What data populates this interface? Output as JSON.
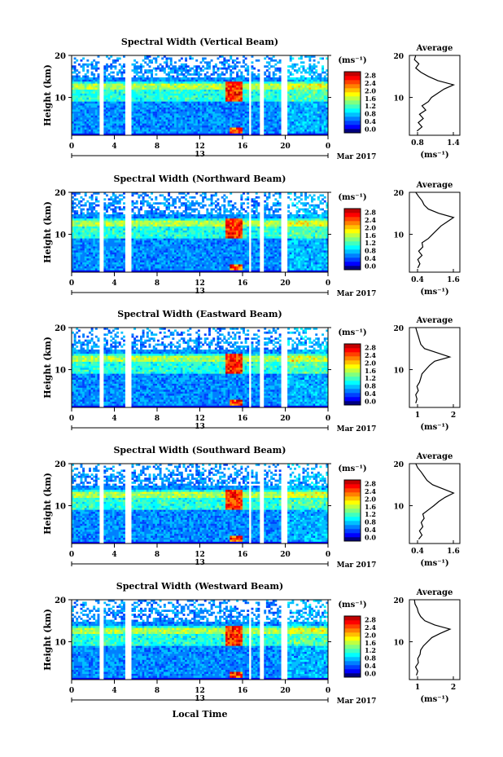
{
  "figure": {
    "xaxis_label": "Local Time",
    "date_label": "Mar 2017",
    "day_label": "13",
    "unit_label": "(ms⁻¹)",
    "avg_unit_label": "(ms⁻¹)",
    "height_label": "Height (km)",
    "avg_title": "Average",
    "colorbar_ticks": [
      "2.8",
      "2.4",
      "2.0",
      "1.6",
      "1.2",
      "0.8",
      "0.4",
      "0.0"
    ],
    "colors": {
      "jet": [
        "#00007f",
        "#0000ff",
        "#0040ff",
        "#0080ff",
        "#00c0ff",
        "#00ffff",
        "#40ffc0",
        "#80ff80",
        "#c0ff40",
        "#ffff00",
        "#ffc000",
        "#ff8000",
        "#ff4000",
        "#ff0000",
        "#c00000"
      ],
      "bg": "#ffffff",
      "line": "#000000"
    }
  },
  "chart_data": [
    {
      "type": "heatmap",
      "title": "Spectral Width (Vertical Beam)",
      "xlim": [
        0,
        24
      ],
      "xticks": [
        "0",
        "4",
        "8",
        "12",
        "16",
        "20",
        "0"
      ],
      "ylim": [
        1,
        20
      ],
      "yticks": [
        "20",
        "10"
      ],
      "colorbar_range": [
        0,
        3.0
      ],
      "features": {
        "hot_patch_hours": [
          14.5,
          16
        ],
        "hot_patch_km": [
          9,
          14
        ],
        "gap_hours": [
          [
            2.1,
            2.3
          ],
          [
            2.6,
            3.0
          ],
          [
            5.1,
            5.5
          ],
          [
            16.6,
            16.8
          ],
          [
            17.6,
            17.9
          ],
          [
            19.7,
            20.2
          ]
        ]
      },
      "average": {
        "xlim": [
          0.6,
          1.4
        ],
        "xticks": [
          "0.8",
          "1.4"
        ],
        "yticks": [
          "20",
          "10"
        ],
        "profile_km": [
          2,
          3,
          4,
          5,
          6,
          7,
          8,
          9,
          10,
          11,
          12,
          13,
          14,
          15,
          16,
          17,
          18,
          19,
          20
        ],
        "profile_values": [
          0.72,
          0.8,
          0.74,
          0.82,
          0.76,
          0.86,
          0.8,
          0.9,
          0.95,
          1.05,
          1.15,
          1.3,
          1.05,
          0.9,
          0.78,
          0.7,
          0.75,
          0.68,
          0.7
        ]
      }
    },
    {
      "type": "heatmap",
      "title": "Spectral Width (Northward Beam)",
      "xlim": [
        0,
        24
      ],
      "xticks": [
        "0",
        "4",
        "8",
        "12",
        "16",
        "20",
        "0"
      ],
      "ylim": [
        1,
        20
      ],
      "yticks": [
        "20",
        "10"
      ],
      "colorbar_range": [
        0,
        3.0
      ],
      "features": {
        "hot_patch_hours": [
          14.5,
          16
        ],
        "hot_patch_km": [
          9,
          14
        ],
        "gap_hours": [
          [
            2.1,
            2.3
          ],
          [
            2.6,
            3.0
          ],
          [
            5.1,
            5.5
          ],
          [
            16.6,
            16.8
          ],
          [
            17.6,
            17.9
          ],
          [
            19.7,
            20.2
          ]
        ]
      },
      "average": {
        "xlim": [
          0.4,
          1.6
        ],
        "xticks": [
          "0.4",
          "1.6"
        ],
        "yticks": [
          "20",
          "10"
        ],
        "profile_km": [
          2,
          3,
          4,
          5,
          6,
          7,
          8,
          9,
          10,
          11,
          12,
          13,
          14,
          15,
          16,
          17,
          18,
          19,
          20
        ],
        "profile_values": [
          0.6,
          0.65,
          0.6,
          0.7,
          0.62,
          0.72,
          0.7,
          0.85,
          0.95,
          1.05,
          1.15,
          1.3,
          1.45,
          1.1,
          0.85,
          0.75,
          0.7,
          0.62,
          0.55
        ]
      }
    },
    {
      "type": "heatmap",
      "title": "Spectral Width (Eastward Beam)",
      "xlim": [
        0,
        24
      ],
      "xticks": [
        "0",
        "4",
        "8",
        "12",
        "16",
        "20",
        "0"
      ],
      "ylim": [
        1,
        20
      ],
      "yticks": [
        "20",
        "10"
      ],
      "colorbar_range": [
        0,
        3.0
      ],
      "features": {
        "hot_patch_hours": [
          14.5,
          16
        ],
        "hot_patch_km": [
          9,
          14
        ],
        "gap_hours": [
          [
            2.1,
            2.3
          ],
          [
            2.6,
            3.0
          ],
          [
            5.1,
            5.5
          ],
          [
            16.6,
            16.8
          ],
          [
            17.6,
            17.9
          ],
          [
            19.7,
            20.2
          ]
        ]
      },
      "average": {
        "xlim": [
          0.3,
          2.3
        ],
        "xticks": [
          "1",
          "2"
        ],
        "yticks": [
          "20",
          "10"
        ],
        "profile_km": [
          2,
          3,
          4,
          5,
          6,
          7,
          8,
          9,
          10,
          11,
          12,
          13,
          14,
          15,
          16,
          17,
          18,
          19,
          20
        ],
        "profile_values": [
          0.55,
          0.6,
          0.55,
          0.65,
          0.6,
          0.7,
          0.75,
          0.8,
          0.95,
          1.1,
          1.3,
          1.9,
          1.4,
          0.9,
          0.75,
          0.7,
          0.65,
          0.6,
          0.55
        ]
      }
    },
    {
      "type": "heatmap",
      "title": "Spectral Width (Southward Beam)",
      "xlim": [
        0,
        24
      ],
      "xticks": [
        "0",
        "4",
        "8",
        "12",
        "16",
        "20",
        "0"
      ],
      "ylim": [
        1,
        20
      ],
      "yticks": [
        "20",
        "10"
      ],
      "colorbar_range": [
        0,
        3.0
      ],
      "features": {
        "hot_patch_hours": [
          14.5,
          16
        ],
        "hot_patch_km": [
          9,
          14
        ],
        "gap_hours": [
          [
            2.1,
            2.3
          ],
          [
            2.6,
            3.0
          ],
          [
            5.1,
            5.5
          ],
          [
            16.6,
            16.8
          ],
          [
            17.6,
            17.9
          ],
          [
            19.7,
            20.2
          ]
        ]
      },
      "average": {
        "xlim": [
          0.4,
          1.6
        ],
        "xticks": [
          "0.4",
          "1.6"
        ],
        "yticks": [
          "20",
          "10"
        ],
        "profile_km": [
          2,
          3,
          4,
          5,
          6,
          7,
          8,
          9,
          10,
          11,
          12,
          13,
          14,
          15,
          16,
          17,
          18,
          19,
          20
        ],
        "profile_values": [
          0.62,
          0.7,
          0.64,
          0.72,
          0.68,
          0.75,
          0.72,
          0.85,
          0.98,
          1.1,
          1.25,
          1.45,
          1.2,
          0.95,
          0.82,
          0.75,
          0.68,
          0.6,
          0.55
        ]
      }
    },
    {
      "type": "heatmap",
      "title": "Spectral Width (Westward Beam)",
      "xlim": [
        0,
        24
      ],
      "xticks": [
        "0",
        "4",
        "8",
        "12",
        "16",
        "20",
        "0"
      ],
      "ylim": [
        1,
        20
      ],
      "yticks": [
        "20",
        "10"
      ],
      "colorbar_range": [
        0,
        3.0
      ],
      "features": {
        "hot_patch_hours": [
          14.5,
          16
        ],
        "hot_patch_km": [
          9,
          14
        ],
        "gap_hours": [
          [
            2.1,
            2.3
          ],
          [
            2.6,
            3.0
          ],
          [
            5.1,
            5.5
          ],
          [
            16.6,
            16.8
          ],
          [
            17.6,
            17.9
          ],
          [
            19.7,
            20.2
          ]
        ]
      },
      "average": {
        "xlim": [
          0.4,
          2.2
        ],
        "xticks": [
          "1",
          "2"
        ],
        "yticks": [
          "20",
          "10"
        ],
        "profile_km": [
          2,
          3,
          4,
          5,
          6,
          7,
          8,
          9,
          10,
          11,
          12,
          13,
          14,
          15,
          16,
          17,
          18,
          19,
          20
        ],
        "profile_values": [
          0.65,
          0.7,
          0.62,
          0.72,
          0.7,
          0.78,
          0.8,
          0.9,
          1.05,
          1.2,
          1.5,
          1.85,
          1.3,
          0.95,
          0.8,
          0.72,
          0.68,
          0.6,
          0.58
        ]
      }
    }
  ]
}
